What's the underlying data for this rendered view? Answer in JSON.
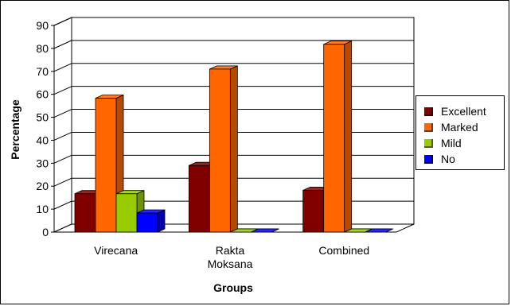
{
  "chart_data": {
    "type": "bar",
    "title": "",
    "xlabel": "Groups",
    "ylabel": "Percentage",
    "ylim": [
      0,
      90
    ],
    "yticks": [
      0,
      10,
      20,
      30,
      40,
      50,
      60,
      70,
      80,
      90
    ],
    "categories": [
      "Virecana",
      "Rakta Moksana",
      "Combined"
    ],
    "category_labels": [
      [
        "Virecana"
      ],
      [
        "Rakta",
        "Moksana"
      ],
      [
        "Combined"
      ]
    ],
    "series": [
      {
        "name": "Excellent",
        "color": "#800000",
        "values": [
          16.7,
          29.0,
          18.2
        ]
      },
      {
        "name": "Marked",
        "color": "#ff6600",
        "values": [
          58.3,
          71.0,
          81.8
        ]
      },
      {
        "name": "Mild",
        "color": "#99cc00",
        "values": [
          16.7,
          0,
          0
        ]
      },
      {
        "name": "No",
        "color": "#0000ff",
        "values": [
          8.3,
          0,
          0
        ]
      }
    ],
    "grid": true,
    "legend_position": "right",
    "style": "3d-clustered-bar"
  }
}
